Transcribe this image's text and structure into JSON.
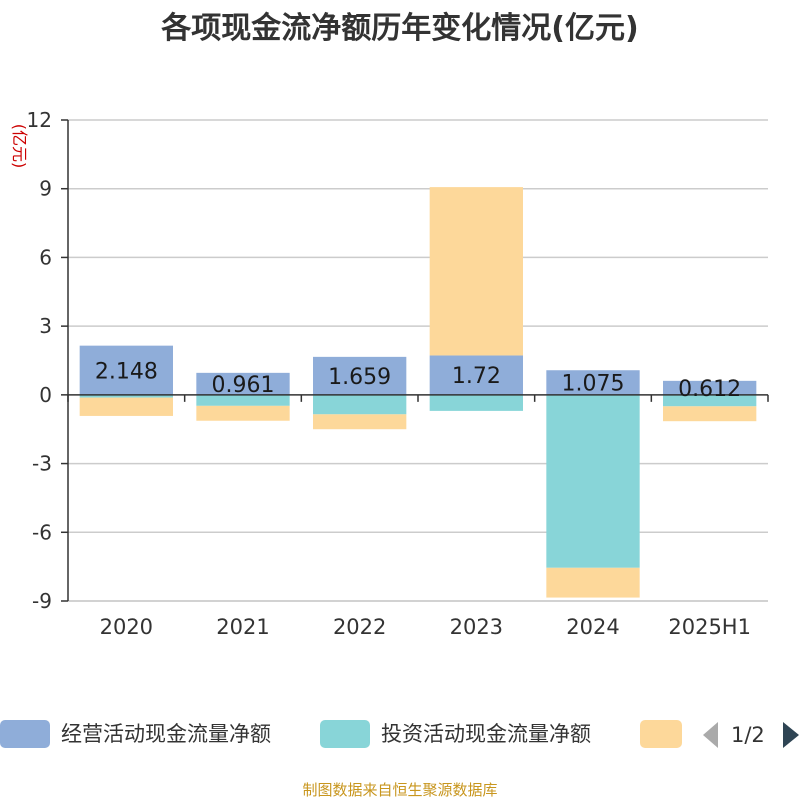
{
  "chart_data": {
    "type": "bar",
    "stacked": true,
    "title": "各项现金流净额历年变化情况(亿元)",
    "ylabel": "(亿元)",
    "categories": [
      "2020",
      "2021",
      "2022",
      "2023",
      "2024",
      "2025H1"
    ],
    "ylim": [
      -9,
      12
    ],
    "yticks": [
      12,
      9,
      6,
      3,
      0,
      -3,
      -6,
      -9
    ],
    "grid": true,
    "legend_position": "bottom",
    "series": [
      {
        "name": "经营活动现金流量净额",
        "color": "#8fadd9",
        "values": [
          2.148,
          0.961,
          1.659,
          1.72,
          1.075,
          0.612
        ],
        "labels": [
          "2.148",
          "0.961",
          "1.659",
          "1.72",
          "1.075",
          "0.612"
        ]
      },
      {
        "name": "投资活动现金流量净额",
        "color": "#88d5d8",
        "values": [
          -0.12,
          -0.48,
          -0.85,
          -0.7,
          -7.55,
          -0.5
        ]
      },
      {
        "name": "",
        "color": "#fdd89a",
        "values": [
          -0.8,
          -0.65,
          -0.65,
          7.35,
          -1.3,
          -0.65
        ]
      }
    ]
  },
  "legend": {
    "page": "1/2"
  },
  "source": "制图数据来自恒生聚源数据库"
}
